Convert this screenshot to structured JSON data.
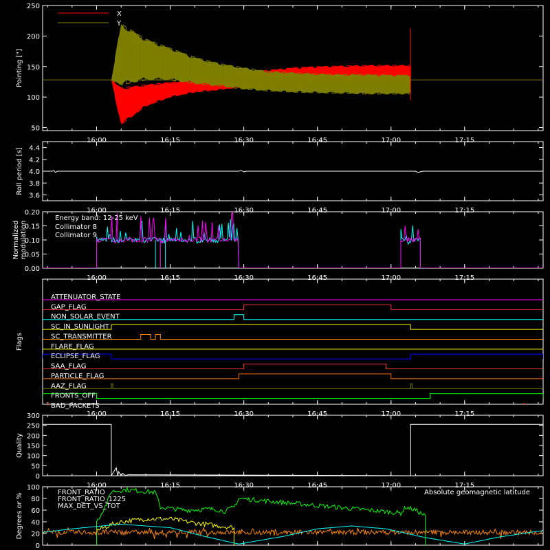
{
  "chart_data": [
    {
      "type": "line",
      "ylabel": "Pointing [\"]",
      "ylim": [
        45,
        250
      ],
      "yticks": [
        50,
        100,
        150,
        200,
        250
      ],
      "x_axis_unit": "time",
      "x_range": [
        "15:49",
        "17:31"
      ],
      "xticks": [
        "16:00",
        "16:15",
        "16:30",
        "16:45",
        "17:00",
        "17:15"
      ],
      "legend": {
        "placement": "top-left",
        "entries": [
          "X",
          "Y"
        ]
      },
      "series": [
        {
          "name": "X",
          "color": "#ff0000",
          "description": "oscillating band",
          "envelope": {
            "x": [
              "16:03",
              "16:05",
              "16:10",
              "16:15",
              "16:20",
              "16:25",
              "16:30",
              "16:35",
              "16:40",
              "16:45",
              "16:50",
              "16:55",
              "17:00",
              "17:04"
            ],
            "low": [
              128,
              55,
              85,
              100,
              108,
              112,
              117,
              119,
              120,
              121,
              121,
              122,
              122,
              122
            ],
            "high": [
              128,
              115,
              120,
              124,
              128,
              134,
              140,
              144,
              148,
              150,
              151,
              152,
              152,
              152
            ]
          }
        },
        {
          "name": "Y",
          "color": "#808000",
          "description": "oscillating band",
          "envelope": {
            "x": [
              "16:03",
              "16:05",
              "16:10",
              "16:15",
              "16:20",
              "16:25",
              "16:30",
              "16:35",
              "16:40",
              "16:45",
              "16:50",
              "16:55",
              "17:00",
              "17:04"
            ],
            "low": [
              128,
              120,
              128,
              128,
              122,
              118,
              113,
              110,
              108,
              107,
              106,
              105,
              105,
              105
            ],
            "high": [
              128,
              220,
              195,
              180,
              165,
              155,
              148,
              142,
              140,
              138,
              137,
              137,
              136,
              136
            ]
          }
        },
        {
          "name": "baseline",
          "color": "#808000",
          "x": [
            "15:49",
            "16:03",
            "17:04",
            "17:31"
          ],
          "values": [
            128,
            128,
            128,
            128
          ]
        }
      ]
    },
    {
      "type": "line",
      "ylabel": "Roll period [s]",
      "ylim": [
        3.5,
        4.5
      ],
      "yticks": [
        "3.6",
        "3.8",
        "4.0",
        "4.2",
        "4.4"
      ],
      "x_range": [
        "15:49",
        "17:31"
      ],
      "xticks": [
        "16:00",
        "16:15",
        "16:30",
        "16:45",
        "17:00",
        "17:15"
      ],
      "series": [
        {
          "color": "#ffffff",
          "x": [
            "15:49",
            "15:51",
            "15:51.3",
            "15:51.6",
            "15:52",
            "16:29",
            "16:29.5",
            "16:30",
            "16:30.5",
            "17:05",
            "17:05.5",
            "17:06",
            "17:06.5",
            "17:31"
          ],
          "values": [
            4.0,
            4.0,
            4.01,
            3.98,
            4.0,
            4.0,
            4.01,
            3.99,
            4.0,
            4.0,
            3.98,
            3.99,
            4.0,
            4.0
          ]
        }
      ]
    },
    {
      "type": "line",
      "ylabel": "Normalized modulation",
      "ylim": [
        0,
        0.2
      ],
      "yticks": [
        "0.00",
        "0.05",
        "0.10",
        "0.15",
        "0.20"
      ],
      "x_range": [
        "15:49",
        "17:31"
      ],
      "xticks": [
        "16:00",
        "16:15",
        "16:30",
        "16:45",
        "17:00",
        "17:15"
      ],
      "annotations": [
        "Energy band: 12-25 keV"
      ],
      "series": [
        {
          "name": "Collimator 8",
          "color": "#00ffff",
          "segments": [
            {
              "start": "16:00",
              "end": "16:29",
              "level": 0.1,
              "spread": [
                0.085,
                0.175
              ]
            },
            {
              "start": "17:02",
              "end": "17:06",
              "level": 0.1,
              "spread": [
                0.085,
                0.18
              ]
            }
          ],
          "dips": [
            "16:12",
            "16:14"
          ]
        },
        {
          "name": "Collimator 9",
          "color": "#ff00ff",
          "segments": [
            {
              "start": "16:00",
              "end": "16:29",
              "level": 0.1,
              "spread": [
                0.085,
                0.2
              ]
            },
            {
              "start": "17:02",
              "end": "17:06",
              "level": 0.1,
              "spread": [
                0.085,
                0.17
              ]
            }
          ],
          "dips": [
            "16:13"
          ]
        }
      ]
    },
    {
      "type": "line",
      "ylabel": "Flags",
      "x_range": [
        "15:49",
        "17:31"
      ],
      "xticks": [
        "16:00",
        "16:15",
        "16:30",
        "16:45",
        "17:00",
        "17:15"
      ],
      "flags": [
        {
          "label": "ATTENUATOR_STATE",
          "color": "#ff00ff",
          "on": []
        },
        {
          "label": "GAP_FLAG",
          "color": "#ff3333",
          "on": [
            [
              "16:30",
              "17:00"
            ]
          ]
        },
        {
          "label": "NON_SOLAR_EVENT",
          "color": "#00ffff",
          "on": [
            [
              "16:28",
              "16:30"
            ]
          ]
        },
        {
          "label": "SC_IN_SUNLIGHT",
          "color": "#ffff00",
          "on": [
            [
              "16:03",
              "17:04"
            ]
          ]
        },
        {
          "label": "SC_TRANSMITTER",
          "color": "#ff8800",
          "on": [
            [
              "16:09",
              "16:11"
            ],
            [
              "16:12",
              "16:13"
            ]
          ]
        },
        {
          "label": "FLARE_FLAG",
          "color": "#ffff00",
          "on": []
        },
        {
          "label": "ECLIPSE_FLAG",
          "color": "#0000ff",
          "on": [
            [
              "15:49",
              "16:03"
            ],
            [
              "17:04",
              "17:31"
            ]
          ]
        },
        {
          "label": "SAA_FLAG",
          "color": "#ff3333",
          "on": [
            [
              "16:30",
              "16:59"
            ]
          ]
        },
        {
          "label": "PARTICLE_FLAG",
          "color": "#ff6600",
          "on": [
            [
              "16:29",
              "17:00"
            ]
          ]
        },
        {
          "label": "AAZ_FLAG",
          "color": "#808000",
          "on": [
            [
              "16:03",
              "16:03.3"
            ],
            [
              "17:04",
              "17:04.3"
            ]
          ]
        },
        {
          "label": "FRONTS_OFF",
          "color": "#00ff00",
          "on": [
            [
              "15:49",
              "16:00"
            ],
            [
              "17:08",
              "17:31"
            ]
          ]
        },
        {
          "label": "BAD_PACKETS",
          "color": "#ff0000",
          "on": [
            [
              "15:50",
              "15:50.3"
            ],
            [
              "17:27",
              "17:27.3"
            ]
          ]
        }
      ]
    },
    {
      "type": "line",
      "ylabel": "Quality",
      "ylim": [
        0,
        300
      ],
      "yticks": [
        0,
        50,
        100,
        150,
        200,
        250,
        300
      ],
      "x_range": [
        "15:49",
        "17:31"
      ],
      "xticks": [
        "16:00",
        "16:15",
        "16:30",
        "16:45",
        "17:00",
        "17:15"
      ],
      "series": [
        {
          "color": "#ffffff",
          "x": [
            "15:49",
            "16:03",
            "16:03",
            "16:04",
            "16:04.3",
            "16:04.5",
            "16:05",
            "16:05.3",
            "16:06",
            "16:06.3",
            "17:04",
            "17:04",
            "17:31"
          ],
          "values": [
            255,
            255,
            0,
            40,
            0,
            20,
            0,
            12,
            0,
            5,
            0,
            255,
            255
          ]
        }
      ]
    },
    {
      "type": "line",
      "ylabel": "Degrees or %",
      "ylim": [
        0,
        100
      ],
      "yticks": [
        0,
        20,
        40,
        60,
        80,
        100
      ],
      "x_range": [
        "15:49",
        "17:31"
      ],
      "xticks": [
        "16:00",
        "16:15",
        "16:30",
        "16:45",
        "17:00",
        "17:15"
      ],
      "legend": {
        "placement": "top-left",
        "entries": [
          "FRONT_RATIO",
          "FRONT_RATIO_1225",
          "MAX_DET_VS_TOT"
        ]
      },
      "annotations": [
        "Absolute geomagnetic latitude"
      ],
      "series": [
        {
          "name": "FRONT_RATIO",
          "color": "#ffff00",
          "x": [
            "16:00",
            "16:03",
            "16:05",
            "16:10",
            "16:15",
            "16:20",
            "16:25",
            "16:28"
          ],
          "values": [
            25,
            35,
            40,
            45,
            45,
            38,
            33,
            30
          ]
        },
        {
          "name": "FRONT_RATIO_1225",
          "color": "#00ff00",
          "x": [
            "16:00",
            "16:02",
            "16:03",
            "16:06",
            "16:10",
            "16:12",
            "16:13",
            "16:18",
            "16:24",
            "16:26",
            "16:28",
            "16:29",
            "17:02",
            "17:03",
            "17:05",
            "17:06",
            "17:07"
          ],
          "values": [
            40,
            70,
            92,
            95,
            92,
            90,
            65,
            60,
            62,
            58,
            65,
            80,
            55,
            65,
            60,
            55,
            50
          ]
        },
        {
          "name": "MAX_DET_VS_TOT",
          "color": "#ff8800",
          "level": 22,
          "spread": [
            10,
            30
          ]
        },
        {
          "name": "Absolute geomagnetic latitude",
          "color": "#00ffff",
          "x": [
            "15:49",
            "15:55",
            "16:05",
            "16:15",
            "16:22",
            "16:29",
            "16:38",
            "16:45",
            "16:52",
            "16:59",
            "17:07",
            "17:15",
            "17:22",
            "17:31"
          ],
          "values": [
            22,
            28,
            36,
            30,
            15,
            2,
            15,
            28,
            33,
            28,
            13,
            2,
            14,
            25
          ]
        }
      ]
    }
  ]
}
